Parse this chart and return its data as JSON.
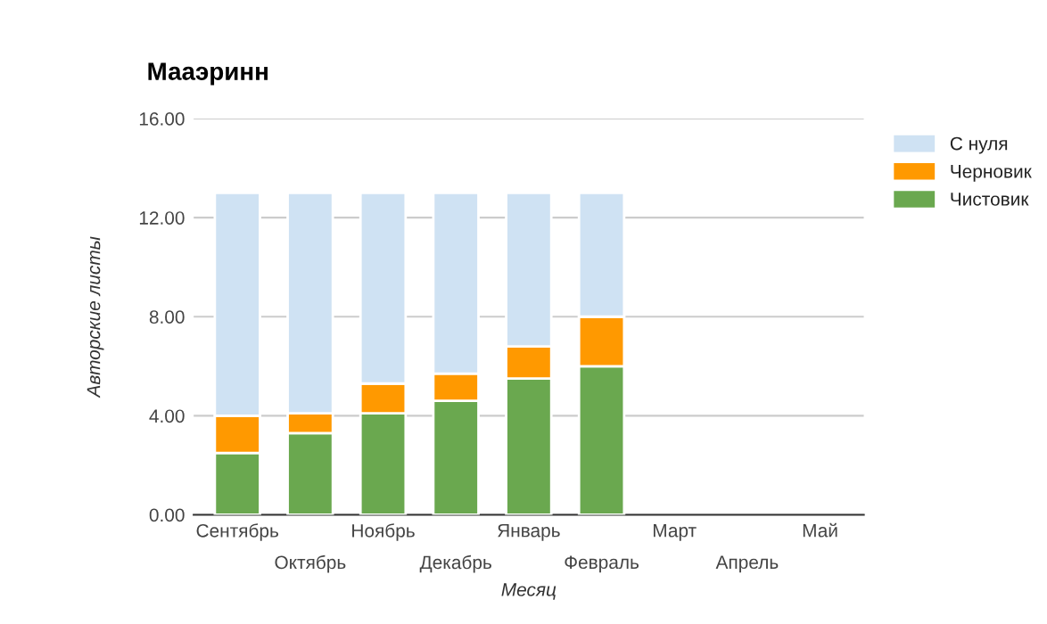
{
  "chart_data": {
    "type": "bar",
    "title": "Мааэринн",
    "xlabel": "Месяц",
    "ylabel": "Авторские листы",
    "categories": [
      "Сентябрь",
      "Октябрь",
      "Ноябрь",
      "Декабрь",
      "Январь",
      "Февраль",
      "Март",
      "Апрель",
      "Май"
    ],
    "stacked": true,
    "series": [
      {
        "name": "Чистовик",
        "color": "#6aa84f",
        "values": [
          2.5,
          3.3,
          4.1,
          4.6,
          5.5,
          6.0,
          null,
          null,
          null
        ]
      },
      {
        "name": "Черновик",
        "color": "#ff9900",
        "values": [
          1.5,
          0.8,
          1.2,
          1.1,
          1.3,
          2.0,
          null,
          null,
          null
        ]
      },
      {
        "name": "С нуля",
        "color": "#cfe2f3",
        "values": [
          9.0,
          8.9,
          7.7,
          7.3,
          6.2,
          5.0,
          null,
          null,
          null
        ]
      }
    ],
    "ylim": [
      0,
      16
    ],
    "yticks": [
      {
        "value": 0,
        "label": "0.00"
      },
      {
        "value": 4,
        "label": "4.00"
      },
      {
        "value": 8,
        "label": "8.00"
      },
      {
        "value": 12,
        "label": "12.00"
      },
      {
        "value": 16,
        "label": "16.00"
      }
    ],
    "grid": "y",
    "legend": "top right"
  }
}
